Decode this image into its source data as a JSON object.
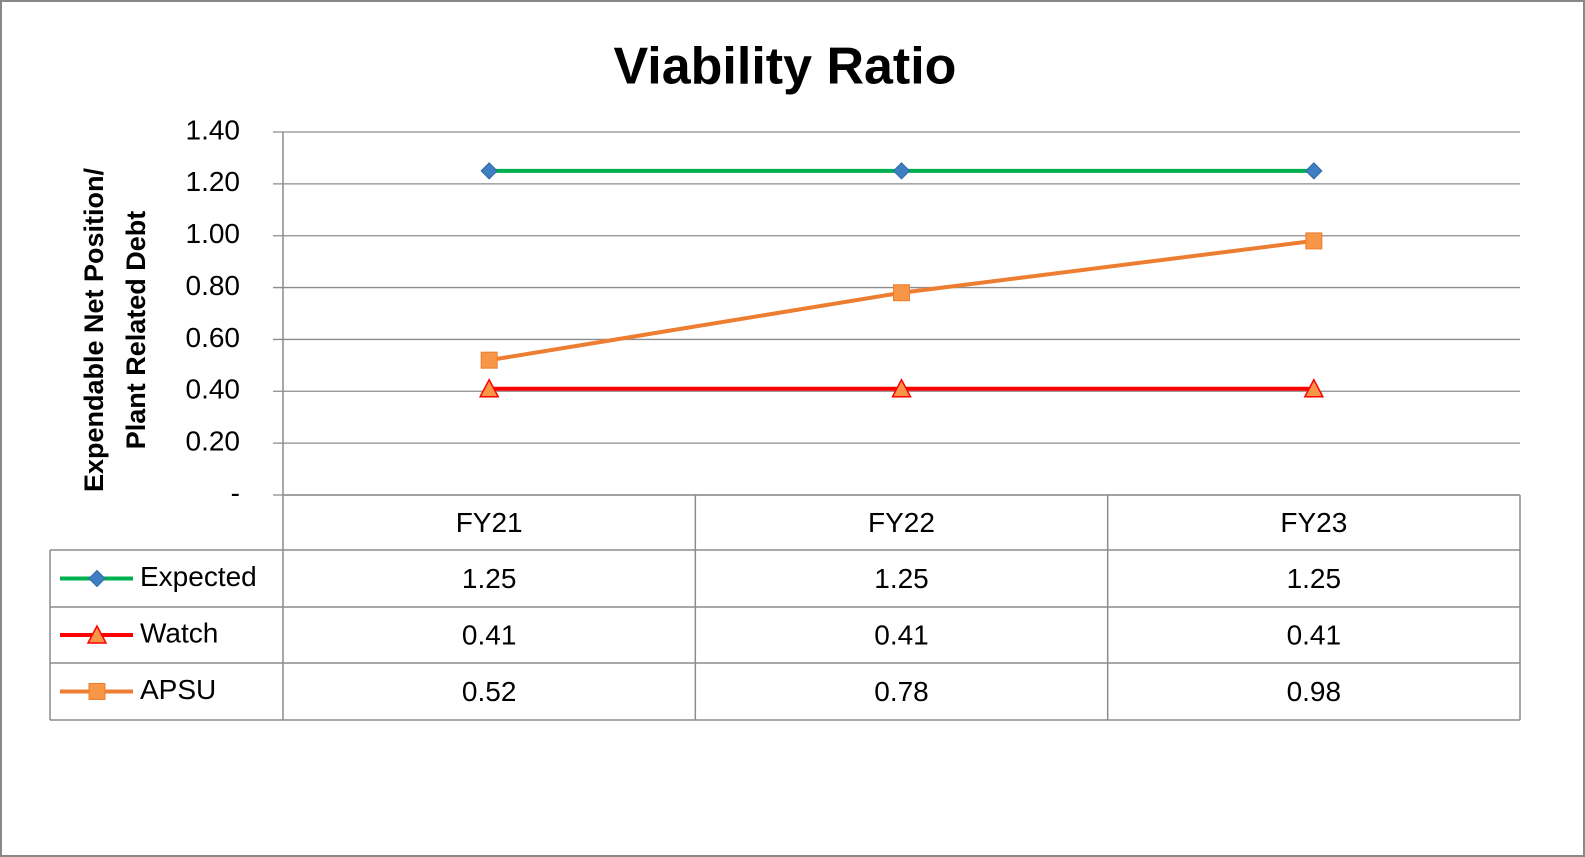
{
  "chart_data": {
    "type": "line",
    "title": "Viability Ratio",
    "y_label": [
      "Expendable Net Position/",
      "Plant Related Debt"
    ],
    "categories": [
      "FY21",
      "FY22",
      "FY23"
    ],
    "series": [
      {
        "name": "Expected",
        "color": "#00b050",
        "marker": "diamond",
        "marker_color": "#3d7fc0",
        "values": [
          1.25,
          1.25,
          1.25
        ]
      },
      {
        "name": "Watch",
        "color": "#ff0000",
        "marker": "triangle",
        "marker_color": "#f79646",
        "values": [
          0.41,
          0.41,
          0.41
        ]
      },
      {
        "name": "APSU",
        "color": "#ed7d31",
        "marker": "square",
        "marker_color": "#f79646",
        "values": [
          0.52,
          0.78,
          0.98
        ]
      }
    ],
    "ylim": [
      0,
      1.4
    ],
    "yticks": [
      {
        "value": 0,
        "label": "-"
      },
      {
        "value": 0.2,
        "label": "0.20"
      },
      {
        "value": 0.4,
        "label": "0.40"
      },
      {
        "value": 0.6,
        "label": "0.60"
      },
      {
        "value": 0.8,
        "label": "0.80"
      },
      {
        "value": 1.0,
        "label": "1.00"
      },
      {
        "value": 1.2,
        "label": "1.20"
      },
      {
        "value": 1.4,
        "label": "1.40"
      }
    ],
    "grid": true,
    "data_table": true
  }
}
